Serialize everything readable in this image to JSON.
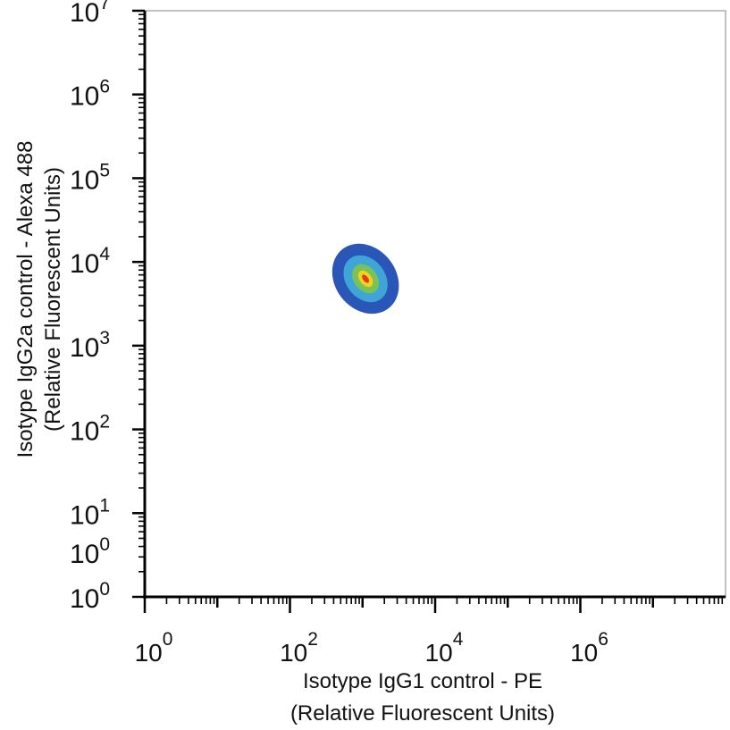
{
  "chart_data": {
    "type": "scatter",
    "subtype": "density-contour",
    "title": "",
    "xlabel": "Isotype IgG1 control - PE",
    "xlabel_sub": "(Relative Fluorescent Units)",
    "ylabel": "Isotype IgG2a control - Alexa 488",
    "ylabel_sub": "(Relative Fluorescent Units)",
    "x_scale": "log",
    "y_scale": "log",
    "xlim": [
      1,
      100000000
    ],
    "ylim": [
      1,
      10000000
    ],
    "x_ticks": [
      {
        "value": 1,
        "base": "10",
        "exp": "0"
      },
      {
        "value": 100,
        "base": "10",
        "exp": "2"
      },
      {
        "value": 10000,
        "base": "10",
        "exp": "4"
      },
      {
        "value": 1000000,
        "base": "10",
        "exp": "6"
      }
    ],
    "y_ticks": [
      {
        "value": 1,
        "base": "10",
        "exp": "0"
      },
      {
        "value": 10,
        "base": "10",
        "exp": "1"
      },
      {
        "value": 100,
        "base": "10",
        "exp": "2"
      },
      {
        "value": 1000,
        "base": "10",
        "exp": "3"
      },
      {
        "value": 10000,
        "base": "10",
        "exp": "4"
      },
      {
        "value": 100000,
        "base": "10",
        "exp": "5"
      },
      {
        "value": 1000000,
        "base": "10",
        "exp": "6"
      },
      {
        "value": 10000000,
        "base": "10",
        "exp": "7"
      }
    ],
    "extra_y_label": {
      "value": 1,
      "base": "10",
      "exp": "0"
    },
    "population": {
      "center_x": 1100,
      "center_y": 6300,
      "levels": [
        {
          "name": "outer",
          "color": "#2a56b8",
          "rx_decades": 0.42,
          "ry_decades": 0.14
        },
        {
          "name": "mid",
          "color": "#3fa5d8",
          "rx_decades": 0.27,
          "ry_decades": 0.095
        },
        {
          "name": "inner",
          "color": "#78c257",
          "rx_decades": 0.16,
          "ry_decades": 0.06
        },
        {
          "name": "high",
          "color": "#f2d21a",
          "rx_decades": 0.08,
          "ry_decades": 0.035
        },
        {
          "name": "peak",
          "color": "#e03a1e",
          "rx_decades": 0.035,
          "ry_decades": 0.018
        }
      ],
      "tilt_deg": -38
    },
    "grid": false,
    "legend": "none"
  }
}
